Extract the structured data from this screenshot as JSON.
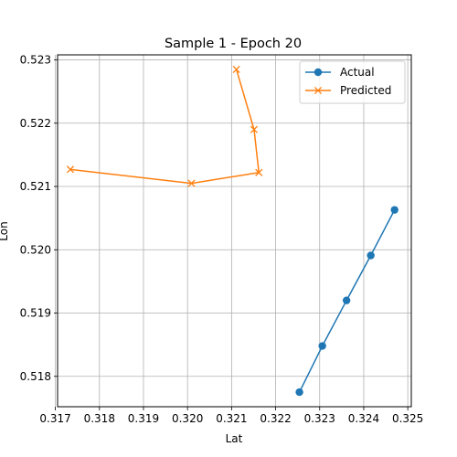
{
  "chart_data": {
    "type": "line",
    "title": "Sample 1 - Epoch 20",
    "xlabel": "Lat",
    "ylabel": "Lon",
    "xlim": [
      0.31705,
      0.32508
    ],
    "ylim": [
      0.51752,
      0.52308
    ],
    "xticks": [
      0.317,
      0.318,
      0.319,
      0.32,
      0.321,
      0.322,
      0.323,
      0.324,
      0.325
    ],
    "yticks": [
      0.518,
      0.519,
      0.52,
      0.521,
      0.522,
      0.523
    ],
    "grid": true,
    "legend_position": "top-right",
    "series": [
      {
        "name": "Actual",
        "color": "#1f77b4",
        "marker": "circle",
        "x": [
          0.32254,
          0.32306,
          0.32361,
          0.32416,
          0.3247
        ],
        "y": [
          0.51775,
          0.51848,
          0.5192,
          0.51991,
          0.52063
        ]
      },
      {
        "name": "Predicted",
        "color": "#ff7f0e",
        "marker": "x",
        "x": [
          0.32111,
          0.32151,
          0.32162,
          0.32009,
          0.31734
        ],
        "y": [
          0.52285,
          0.5219,
          0.52122,
          0.52105,
          0.52127
        ]
      }
    ]
  }
}
